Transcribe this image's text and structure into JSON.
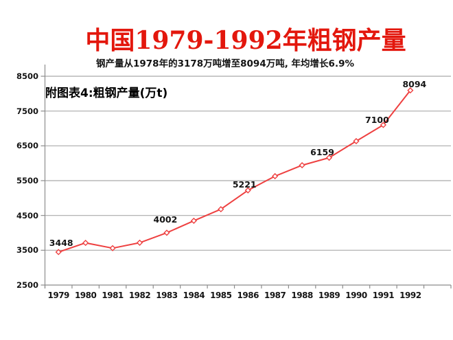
{
  "page": {
    "background": "#ffffff"
  },
  "title": {
    "text": "中国1979-1992年粗钢产量",
    "color": "#e3170d"
  },
  "subtitle": {
    "text": "钢产量从1978年的3178万吨增至8094万吨, 年均增长6.9%"
  },
  "series_callout": {
    "text": "附图表4:粗钢产量(万t)"
  },
  "chart_data": {
    "type": "line",
    "title": "中国1979-1992年粗钢产量",
    "subtitle": "钢产量从1978年的3178万吨增至8094万吨, 年均增长6.9%",
    "series_label": "附图表4:粗钢产量(万t)",
    "categories": [
      "1979",
      "1980",
      "1981",
      "1982",
      "1983",
      "1984",
      "1985",
      "1986",
      "1987",
      "1988",
      "1989",
      "1990",
      "1991",
      "1992"
    ],
    "series": [
      {
        "name": "粗钢产量(万t)",
        "values": [
          3448,
          3712,
          3560,
          3716,
          4002,
          4347,
          4679,
          5221,
          5628,
          5943,
          6159,
          6635,
          7100,
          8094
        ]
      }
    ],
    "labeled_points": [
      {
        "category": "1979",
        "value": 3448
      },
      {
        "category": "1983",
        "value": 4002
      },
      {
        "category": "1986",
        "value": 5221
      },
      {
        "category": "1989",
        "value": 6159
      },
      {
        "category": "1991",
        "value": 7100
      },
      {
        "category": "1992",
        "value": 8094
      }
    ],
    "xlabel": "",
    "ylabel": "万t",
    "ylim": [
      2500,
      8500
    ],
    "yticks": [
      2500,
      3500,
      4500,
      5500,
      6500,
      7500,
      8500
    ],
    "grid": "horizontal",
    "legend": "none",
    "marker": "open-diamond",
    "colors": {
      "line": "#ee4040",
      "marker_fill": "#ffffff",
      "gridline": "#a9a9a9",
      "axis": "#8c8c8c",
      "tick_text": "#141414",
      "title": "#e3170d"
    }
  }
}
